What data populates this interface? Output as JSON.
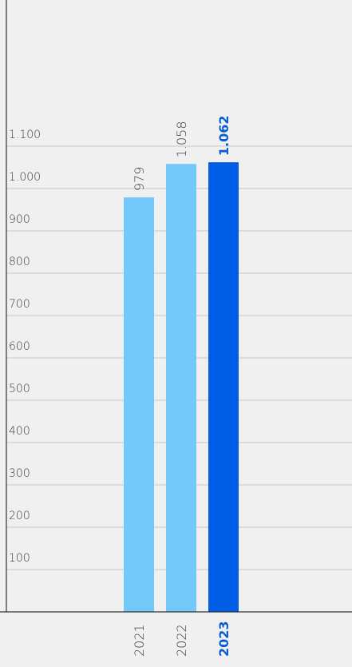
{
  "chart_data": {
    "type": "bar",
    "categories": [
      "2021",
      "2022",
      "2023"
    ],
    "values": [
      979,
      1058,
      1062
    ],
    "value_labels": [
      "979",
      "1.058",
      "1.062"
    ],
    "highlight_index": 2,
    "y_ticks": [
      100,
      200,
      300,
      400,
      500,
      600,
      700,
      800,
      900,
      1000,
      1100
    ],
    "y_tick_labels": [
      "100",
      "200",
      "300",
      "400",
      "500",
      "600",
      "700",
      "800",
      "900",
      "1.000",
      "1.100"
    ],
    "ylim": [
      0,
      1100
    ],
    "grid": true,
    "colors": {
      "bar": "#72c8f8",
      "bar_highlight": "#005ee6",
      "grid": "#c8c8c8",
      "axis": "#333333",
      "highlight_text": "#0a5cd6"
    }
  }
}
